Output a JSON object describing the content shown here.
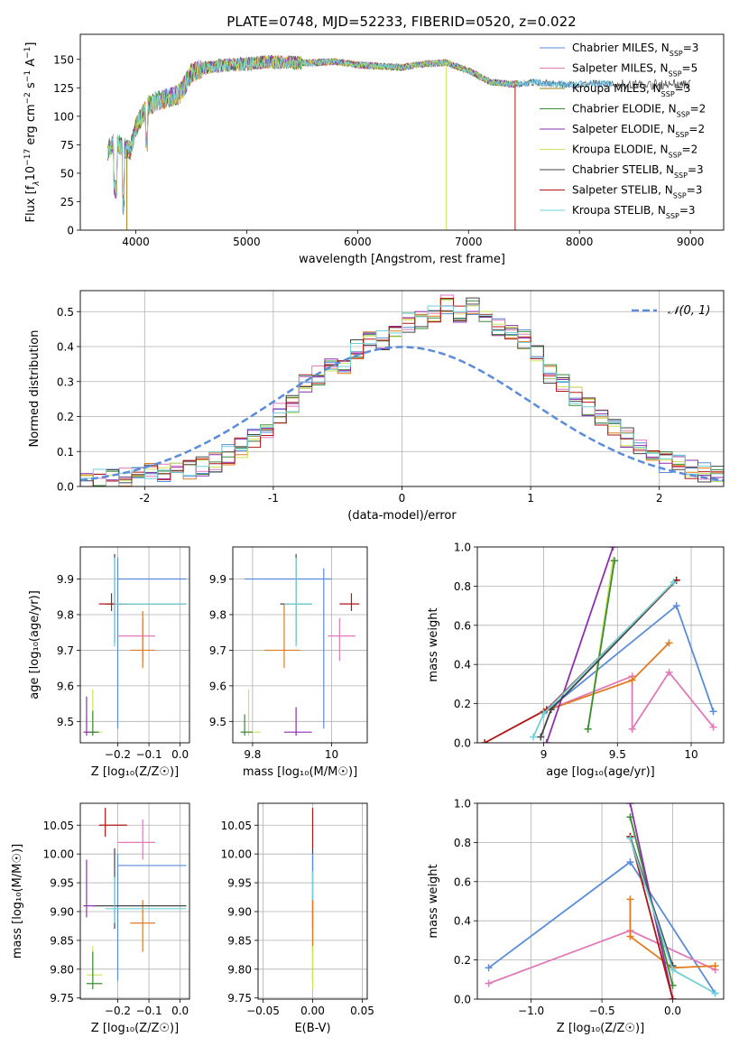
{
  "figure": {
    "title": "PLATE=0748, MJD=52233, FIBERID=0520, z=0.022"
  },
  "colors": {
    "Chabrier MILES": "#5b8bd9",
    "Salpeter MILES": "#e07ab8",
    "Kroupa MILES": "#9a7d18",
    "Chabrier ELODIE": "#3b8c3b",
    "Salpeter ELODIE": "#8e2fae",
    "Kroupa ELODIE": "#cfe35a",
    "Chabrier STELIB": "#444444",
    "Salpeter STELIB": "#b01616",
    "Kroupa STELIB": "#6fd0d6",
    "orange": "#e07b20",
    "normal": "#5b8bd9"
  },
  "chart_data": [
    {
      "id": "spectrum",
      "type": "line",
      "title": "PLATE=0748, MJD=52233, FIBERID=0520, z=0.022",
      "xlabel": "wavelength [Angstrom, rest frame]",
      "ylabel_parts": [
        "Flux [f",
        "λ",
        "10",
        "−17",
        " erg cm",
        "−2",
        " s",
        "−1",
        " A",
        "−1",
        "]"
      ],
      "xlim": [
        3500,
        9300
      ],
      "ylim": [
        0,
        172
      ],
      "xticks": [
        4000,
        5000,
        6000,
        7000,
        8000,
        9000
      ],
      "yticks": [
        0,
        25,
        50,
        75,
        100,
        125,
        150
      ],
      "continuum": {
        "x": [
          3750,
          3800,
          3900,
          3950,
          4000,
          4100,
          4200,
          4300,
          4400,
          4500,
          4600,
          4800,
          5000,
          5200,
          5400,
          5600,
          5800,
          6000,
          6200,
          6400,
          6600,
          6800,
          7000,
          7200,
          7400,
          7600,
          7800,
          8000,
          8200,
          8300
        ],
        "y": [
          70,
          78,
          72,
          70,
          90,
          108,
          114,
          116,
          120,
          138,
          142,
          145,
          146,
          148,
          147,
          147,
          148,
          145,
          144,
          143,
          146,
          147,
          140,
          130,
          128,
          130,
          128,
          128,
          129,
          128
        ]
      },
      "spikes": [
        {
          "series": "Kroupa MILES",
          "x": 3920,
          "depth_to": 0
        },
        {
          "series": "Kroupa ELODIE",
          "x": 6800,
          "depth_to": 0
        },
        {
          "series": "Salpeter STELIB",
          "x": 7420,
          "depth_to": 0
        }
      ],
      "legend_position": "top-right",
      "legend": [
        {
          "series": "Chabrier MILES",
          "name": "Chabrier MILES, N",
          "sub": "SSP",
          "suffix": "=3"
        },
        {
          "series": "Salpeter MILES",
          "name": "Salpeter MILES, N",
          "sub": "SSP",
          "suffix": "=5"
        },
        {
          "series": "Kroupa MILES",
          "name": "Kroupa MILES, N",
          "sub": "SSP",
          "suffix": "=3"
        },
        {
          "series": "Chabrier ELODIE",
          "name": "Chabrier ELODIE, N",
          "sub": "SSP",
          "suffix": "=2"
        },
        {
          "series": "Salpeter ELODIE",
          "name": "Salpeter ELODIE, N",
          "sub": "SSP",
          "suffix": "=2"
        },
        {
          "series": "Kroupa ELODIE",
          "name": "Kroupa ELODIE, N",
          "sub": "SSP",
          "suffix": "=2"
        },
        {
          "series": "Chabrier STELIB",
          "name": "Chabrier STELIB, N",
          "sub": "SSP",
          "suffix": "=3"
        },
        {
          "series": "Salpeter STELIB",
          "name": "Salpeter STELIB, N",
          "sub": "SSP",
          "suffix": "=3"
        },
        {
          "series": "Kroupa STELIB",
          "name": "Kroupa STELIB, N",
          "sub": "SSP",
          "suffix": "=3"
        }
      ]
    },
    {
      "id": "residuals",
      "type": "histogram",
      "xlabel": "(data-model)/error",
      "ylabel": "Normed distribution",
      "xlim": [
        -2.5,
        2.5
      ],
      "ylim": [
        0,
        0.56
      ],
      "xticks": [
        -2,
        -1,
        0,
        1,
        2
      ],
      "yticks": [
        0.0,
        0.1,
        0.2,
        0.3,
        0.4,
        0.5
      ],
      "grid": true,
      "bin_width": 0.1,
      "base_hist": [
        0.02,
        0.02,
        0.02,
        0.03,
        0.03,
        0.04,
        0.04,
        0.05,
        0.05,
        0.06,
        0.07,
        0.09,
        0.11,
        0.14,
        0.17,
        0.21,
        0.24,
        0.29,
        0.32,
        0.34,
        0.33,
        0.39,
        0.43,
        0.42,
        0.45,
        0.47,
        0.48,
        0.5,
        0.52,
        0.49,
        0.51,
        0.48,
        0.46,
        0.44,
        0.42,
        0.38,
        0.32,
        0.3,
        0.26,
        0.23,
        0.2,
        0.17,
        0.14,
        0.11,
        0.09,
        0.07,
        0.06,
        0.05,
        0.04,
        0.03
      ],
      "normal_curve": {
        "label": "𝒩(0, 1)",
        "mu": 0,
        "sigma": 1
      },
      "legend_position": "top-right"
    },
    {
      "id": "age-vs-Z",
      "type": "errorbar",
      "xlabel": "Z [log₁₀(Z/Z☉)]",
      "ylabel": "age  [log₁₀(age/yr)]",
      "xlim": [
        -0.32,
        0.03
      ],
      "ylim": [
        9.44,
        9.99
      ],
      "xticks": [
        -0.2,
        -0.1,
        0.0
      ],
      "xticklabels": [
        "−0.2",
        "−0.1",
        "0.0"
      ],
      "yticks": [
        9.5,
        9.6,
        9.7,
        9.8,
        9.9
      ],
      "grid": true,
      "points": [
        {
          "series": "Chabrier MILES",
          "x": -0.2,
          "y": 9.9,
          "x_lo": -0.2,
          "x_hi": 0.02,
          "y_lo": 9.48,
          "y_hi": 9.96
        },
        {
          "series": "Salpeter MILES",
          "x": -0.12,
          "y": 9.74,
          "x_lo": -0.2,
          "x_hi": -0.08,
          "y_lo": 9.67,
          "y_hi": 9.79
        },
        {
          "series": "orange",
          "x": -0.12,
          "y": 9.7,
          "x_lo": -0.16,
          "x_hi": -0.08,
          "y_lo": 9.65,
          "y_hi": 9.81
        },
        {
          "series": "Chabrier STELIB",
          "x": -0.21,
          "y": 9.83,
          "x_lo": -0.24,
          "x_hi": 0.02,
          "y_lo": 9.72,
          "y_hi": 9.97
        },
        {
          "series": "Salpeter STELIB",
          "x": -0.22,
          "y": 9.83,
          "x_lo": -0.26,
          "x_hi": -0.17,
          "y_lo": 9.81,
          "y_hi": 9.86
        },
        {
          "series": "Kroupa STELIB",
          "x": -0.21,
          "y": 9.83,
          "x_lo": -0.21,
          "x_hi": 0.02,
          "y_lo": 9.71,
          "y_hi": 9.96
        },
        {
          "series": "Kroupa ELODIE",
          "x": -0.28,
          "y": 9.47,
          "x_lo": -0.3,
          "x_hi": -0.25,
          "y_lo": 9.46,
          "y_hi": 9.59
        },
        {
          "series": "Salpeter ELODIE",
          "x": -0.3,
          "y": 9.47,
          "x_lo": -0.31,
          "x_hi": -0.27,
          "y_lo": 9.46,
          "y_hi": 9.57
        },
        {
          "series": "Chabrier ELODIE",
          "x": -0.28,
          "y": 9.47,
          "x_lo": -0.29,
          "x_hi": -0.26,
          "y_lo": 9.46,
          "y_hi": 9.53
        }
      ]
    },
    {
      "id": "age-vs-mass",
      "type": "errorbar",
      "xlabel": "mass [log₁₀(M/M☉)]",
      "xlim": [
        9.75,
        10.09
      ],
      "ylim": [
        9.44,
        9.99
      ],
      "xticks": [
        9.8,
        10.0
      ],
      "yticks": [
        9.5,
        9.6,
        9.7,
        9.8,
        9.9
      ],
      "grid": true,
      "points": [
        {
          "series": "Chabrier MILES",
          "x": 9.98,
          "y": 9.9,
          "x_lo": 9.78,
          "x_hi": 10.0,
          "y_lo": 9.48,
          "y_hi": 9.93
        },
        {
          "series": "Salpeter MILES",
          "x": 10.02,
          "y": 9.74,
          "x_lo": 9.99,
          "x_hi": 10.06,
          "y_lo": 9.67,
          "y_hi": 9.79
        },
        {
          "series": "orange",
          "x": 9.88,
          "y": 9.7,
          "x_lo": 9.83,
          "x_hi": 9.92,
          "y_lo": 9.65,
          "y_hi": 9.83
        },
        {
          "series": "Chabrier STELIB",
          "x": 9.91,
          "y": 9.83,
          "x_lo": 9.87,
          "x_hi": 9.95,
          "y_lo": 9.72,
          "y_hi": 9.97
        },
        {
          "series": "Salpeter STELIB",
          "x": 10.05,
          "y": 9.83,
          "x_lo": 10.02,
          "x_hi": 10.07,
          "y_lo": 9.81,
          "y_hi": 9.86
        },
        {
          "series": "Kroupa STELIB",
          "x": 9.91,
          "y": 9.83,
          "x_lo": 9.88,
          "x_hi": 9.95,
          "y_lo": 9.71,
          "y_hi": 9.96
        },
        {
          "series": "Kroupa ELODIE",
          "x": 9.79,
          "y": 9.47,
          "x_lo": 9.77,
          "x_hi": 9.82,
          "y_lo": 9.46,
          "y_hi": 9.59
        },
        {
          "series": "Salpeter ELODIE",
          "x": 9.91,
          "y": 9.47,
          "x_lo": 9.88,
          "x_hi": 9.95,
          "y_lo": 9.46,
          "y_hi": 9.54
        },
        {
          "series": "Chabrier ELODIE",
          "x": 9.78,
          "y": 9.47,
          "x_lo": 9.77,
          "x_hi": 9.8,
          "y_lo": 9.46,
          "y_hi": 9.52
        }
      ]
    },
    {
      "id": "weight-vs-age",
      "type": "line",
      "xlabel": "age  [log₁₀(age/yr)]",
      "ylabel": "mass weight",
      "xlim": [
        8.55,
        10.22
      ],
      "ylim": [
        0.0,
        1.0
      ],
      "xticks": [
        9.0,
        9.5,
        10.0
      ],
      "yticks": [
        0.0,
        0.2,
        0.4,
        0.6,
        0.8,
        1.0
      ],
      "grid": true,
      "series": [
        {
          "series": "Chabrier MILES",
          "points": [
            [
              9.0,
              0.15
            ],
            [
              9.9,
              0.7
            ],
            [
              10.15,
              0.16
            ]
          ]
        },
        {
          "series": "Salpeter MILES",
          "points": [
            [
              9.0,
              0.16
            ],
            [
              9.6,
              0.34
            ],
            [
              9.6,
              0.07
            ],
            [
              9.85,
              0.36
            ],
            [
              10.15,
              0.08
            ]
          ]
        },
        {
          "series": "orange",
          "points": [
            [
              9.0,
              0.16
            ],
            [
              9.6,
              0.32
            ],
            [
              9.85,
              0.51
            ]
          ]
        },
        {
          "series": "Kroupa ELODIE",
          "points": [
            [
              9.3,
              0.07
            ],
            [
              9.47,
              0.93
            ]
          ]
        },
        {
          "series": "Chabrier ELODIE",
          "points": [
            [
              9.3,
              0.07
            ],
            [
              9.48,
              0.93
            ]
          ]
        },
        {
          "series": "Salpeter ELODIE",
          "points": [
            [
              9.02,
              0.0
            ],
            [
              9.47,
              1.0
            ]
          ]
        },
        {
          "series": "Chabrier STELIB",
          "points": [
            [
              8.98,
              0.03
            ],
            [
              9.05,
              0.17
            ],
            [
              9.9,
              0.83
            ]
          ]
        },
        {
          "series": "Salpeter STELIB",
          "points": [
            [
              8.6,
              0.0
            ],
            [
              9.02,
              0.17
            ],
            [
              9.9,
              0.83
            ]
          ]
        },
        {
          "series": "Kroupa STELIB",
          "points": [
            [
              8.93,
              0.03
            ],
            [
              9.0,
              0.15
            ],
            [
              9.88,
              0.82
            ]
          ]
        }
      ]
    },
    {
      "id": "mass-vs-Z",
      "type": "errorbar",
      "xlabel": "Z [log₁₀(Z/Z☉)]",
      "ylabel": "mass [log₁₀(M/M☉)]",
      "xlim": [
        -0.32,
        0.03
      ],
      "ylim": [
        9.748,
        10.088
      ],
      "xticks": [
        -0.2,
        -0.1,
        0.0
      ],
      "xticklabels": [
        "−0.2",
        "−0.1",
        "0.0"
      ],
      "yticks": [
        9.75,
        9.8,
        9.85,
        9.9,
        9.95,
        10.0,
        10.05
      ],
      "grid": true,
      "points": [
        {
          "series": "Chabrier MILES",
          "x": -0.2,
          "y": 9.98,
          "x_lo": -0.2,
          "x_hi": 0.02,
          "y_lo": 9.78,
          "y_hi": 10.0
        },
        {
          "series": "Salpeter MILES",
          "x": -0.12,
          "y": 10.02,
          "x_lo": -0.2,
          "x_hi": -0.08,
          "y_lo": 9.99,
          "y_hi": 10.06
        },
        {
          "series": "orange",
          "x": -0.12,
          "y": 9.88,
          "x_lo": -0.16,
          "x_hi": -0.08,
          "y_lo": 9.83,
          "y_hi": 9.92
        },
        {
          "series": "Chabrier STELIB",
          "x": -0.21,
          "y": 9.91,
          "x_lo": -0.28,
          "x_hi": 0.02,
          "y_lo": 9.87,
          "y_hi": 10.01
        },
        {
          "series": "Salpeter STELIB",
          "x": -0.24,
          "y": 10.05,
          "x_lo": -0.26,
          "x_hi": -0.17,
          "y_lo": 10.03,
          "y_hi": 10.08
        },
        {
          "series": "Kroupa STELIB",
          "x": -0.21,
          "y": 9.905,
          "x_lo": -0.24,
          "x_hi": 0.02,
          "y_lo": 9.88,
          "y_hi": 9.96
        },
        {
          "series": "Kroupa ELODIE",
          "x": -0.28,
          "y": 9.79,
          "x_lo": -0.3,
          "x_hi": -0.25,
          "y_lo": 9.77,
          "y_hi": 9.84
        },
        {
          "series": "Salpeter ELODIE",
          "x": -0.3,
          "y": 9.91,
          "x_lo": -0.31,
          "x_hi": -0.27,
          "y_lo": 9.89,
          "y_hi": 9.99
        },
        {
          "series": "Chabrier ELODIE",
          "x": -0.28,
          "y": 9.775,
          "x_lo": -0.3,
          "x_hi": -0.25,
          "y_lo": 9.765,
          "y_hi": 9.83
        }
      ]
    },
    {
      "id": "mass-vs-EBV",
      "type": "errorbar",
      "xlabel": "E(B-V)",
      "xlim": [
        -0.055,
        0.055
      ],
      "ylim": [
        9.748,
        10.088
      ],
      "xticks": [
        -0.05,
        0.0,
        0.05
      ],
      "xticklabels": [
        "−0.05",
        "0.00",
        "0.05"
      ],
      "yticks": [
        9.75,
        9.8,
        9.85,
        9.9,
        9.95,
        10.0,
        10.05
      ],
      "grid": true,
      "points": [
        {
          "series": "Salpeter STELIB",
          "x": 0.0,
          "y": 10.05,
          "x_lo": 0.0,
          "x_hi": 0.0,
          "y_lo": 10.01,
          "y_hi": 10.08
        },
        {
          "series": "Chabrier STELIB",
          "x": 0.0,
          "y": 9.91,
          "x_lo": 0.0,
          "x_hi": 0.0,
          "y_lo": 9.87,
          "y_hi": 10.01
        },
        {
          "series": "Chabrier MILES",
          "x": 0.0,
          "y": 9.98,
          "x_lo": 0.0,
          "x_hi": 0.0,
          "y_lo": 9.78,
          "y_hi": 10.0
        },
        {
          "series": "Kroupa STELIB",
          "x": 0.0,
          "y": 9.905,
          "x_lo": 0.0,
          "x_hi": 0.0,
          "y_lo": 9.85,
          "y_hi": 9.97
        },
        {
          "series": "orange",
          "x": 0.0,
          "y": 9.88,
          "x_lo": 0.0,
          "x_hi": 0.0,
          "y_lo": 9.83,
          "y_hi": 9.92
        },
        {
          "series": "Kroupa ELODIE",
          "x": 0.0,
          "y": 9.79,
          "x_lo": 0.0,
          "x_hi": 0.0,
          "y_lo": 9.765,
          "y_hi": 9.84
        }
      ]
    },
    {
      "id": "weight-vs-Z",
      "type": "line",
      "xlabel": "Z [log₁₀(Z/Z☉)]",
      "ylabel": "mass weight",
      "xlim": [
        -1.38,
        0.36
      ],
      "ylim": [
        0.0,
        1.0
      ],
      "xticks": [
        -1.0,
        -0.5,
        0.0
      ],
      "xticklabels": [
        "−1.0",
        "−0.5",
        "0.0"
      ],
      "yticks": [
        0.0,
        0.2,
        0.4,
        0.6,
        0.8,
        1.0
      ],
      "grid": true,
      "series": [
        {
          "series": "Chabrier MILES",
          "points": [
            [
              -1.3,
              0.16
            ],
            [
              -0.3,
              0.7
            ],
            [
              0.3,
              0.03
            ]
          ]
        },
        {
          "series": "Salpeter MILES",
          "points": [
            [
              -1.3,
              0.08
            ],
            [
              -0.3,
              0.35
            ],
            [
              0.3,
              0.15
            ]
          ]
        },
        {
          "series": "orange",
          "points": [
            [
              -0.3,
              0.51
            ],
            [
              -0.3,
              0.32
            ],
            [
              0.0,
              0.16
            ],
            [
              0.3,
              0.17
            ]
          ]
        },
        {
          "series": "Kroupa ELODIE",
          "points": [
            [
              -0.3,
              0.93
            ],
            [
              0.0,
              0.07
            ]
          ]
        },
        {
          "series": "Chabrier ELODIE",
          "points": [
            [
              -0.3,
              0.93
            ],
            [
              0.0,
              0.07
            ]
          ]
        },
        {
          "series": "Salpeter ELODIE",
          "points": [
            [
              -0.3,
              1.0
            ],
            [
              0.0,
              0.0
            ]
          ]
        },
        {
          "series": "Chabrier STELIB",
          "points": [
            [
              -0.3,
              0.83
            ],
            [
              0.0,
              0.17
            ]
          ]
        },
        {
          "series": "Salpeter STELIB",
          "points": [
            [
              -0.3,
              0.83
            ],
            [
              0.0,
              0.0
            ]
          ]
        },
        {
          "series": "Kroupa STELIB",
          "points": [
            [
              -0.3,
              0.82
            ],
            [
              0.0,
              0.15
            ],
            [
              0.3,
              0.03
            ]
          ]
        }
      ]
    }
  ]
}
